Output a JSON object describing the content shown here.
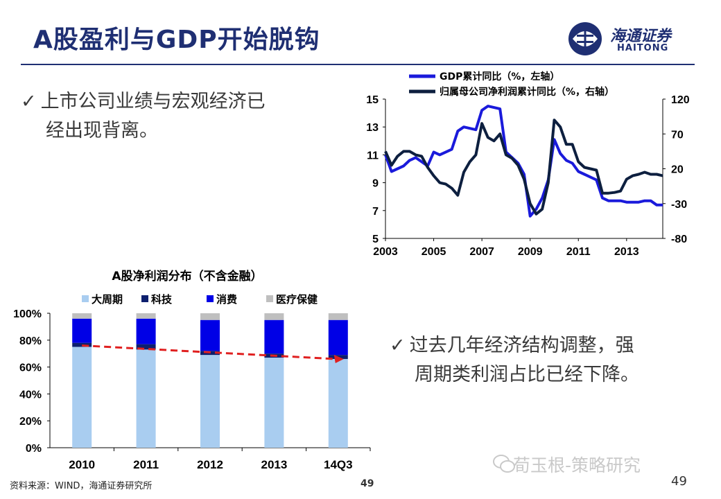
{
  "title": "A股盈利与GDP开始脱钩",
  "logo": {
    "cn": "海通证券",
    "en": "HAITONG"
  },
  "bullets": {
    "b1_line1": "上市公司业绩与宏观经济已",
    "b1_line2": "经出现背离。",
    "b2_line1": "过去几年经济结构调整，强",
    "b2_line2": "周期类利润占比已经下降。"
  },
  "source": "资料来源：WIND，海通证券研究所",
  "page_number_left": "49",
  "page_number_right": "49",
  "watermark": "荀玉根-策略研究",
  "colors": {
    "title": "#1f2f73",
    "gdp": "#1a1adb",
    "profit": "#0d1f3f",
    "cyc": "#a9cdf0",
    "tech": "#0d1f6e",
    "cons": "#0000e6",
    "health": "#bfbfbf",
    "trend": "#e02020"
  },
  "chart_data": [
    {
      "type": "line",
      "legend": [
        "GDP累计同比（%，左轴）",
        "归属母公司净利润累计同比（%，右轴）"
      ],
      "x_ticks": [
        "2003",
        "2005",
        "2007",
        "2009",
        "2011",
        "2013"
      ],
      "xlim": [
        2003,
        2014.5
      ],
      "y_left": {
        "ticks": [
          "15",
          "13",
          "11",
          "9",
          "7",
          "5"
        ],
        "lim": [
          5,
          15
        ]
      },
      "y_right": {
        "ticks": [
          "120",
          "70",
          "20",
          "-30",
          "-80"
        ],
        "lim": [
          -80,
          120
        ]
      },
      "series": [
        {
          "name": "GDP累计同比（%，左轴）",
          "axis": "left",
          "x": [
            2003.0,
            2003.25,
            2003.5,
            2003.75,
            2004.0,
            2004.25,
            2004.5,
            2004.75,
            2005.0,
            2005.25,
            2005.5,
            2005.75,
            2006.0,
            2006.25,
            2006.5,
            2006.75,
            2007.0,
            2007.25,
            2007.5,
            2007.75,
            2008.0,
            2008.25,
            2008.5,
            2008.75,
            2009.0,
            2009.25,
            2009.5,
            2009.75,
            2010.0,
            2010.25,
            2010.5,
            2010.75,
            2011.0,
            2011.25,
            2011.5,
            2011.75,
            2012.0,
            2012.25,
            2012.5,
            2012.75,
            2013.0,
            2013.25,
            2013.5,
            2013.75,
            2014.0,
            2014.25,
            2014.5
          ],
          "values": [
            11.0,
            9.8,
            10.0,
            10.2,
            10.6,
            10.8,
            10.5,
            10.2,
            11.2,
            11.0,
            11.2,
            11.4,
            12.7,
            13.0,
            12.9,
            12.8,
            14.2,
            14.5,
            14.4,
            14.3,
            11.2,
            10.8,
            10.4,
            9.6,
            6.6,
            7.1,
            7.9,
            9.2,
            12.1,
            11.1,
            10.6,
            10.4,
            9.8,
            9.6,
            9.4,
            9.2,
            7.9,
            7.7,
            7.7,
            7.7,
            7.6,
            7.6,
            7.6,
            7.7,
            7.7,
            7.4,
            7.4
          ]
        },
        {
          "name": "归属母公司净利润累计同比（%，右轴）",
          "axis": "right",
          "x": [
            2003.0,
            2003.25,
            2003.5,
            2003.75,
            2004.0,
            2004.25,
            2004.5,
            2004.75,
            2005.0,
            2005.25,
            2005.5,
            2005.75,
            2006.0,
            2006.25,
            2006.5,
            2006.75,
            2007.0,
            2007.25,
            2007.5,
            2007.75,
            2008.0,
            2008.25,
            2008.5,
            2008.75,
            2009.0,
            2009.25,
            2009.5,
            2009.75,
            2010.0,
            2010.25,
            2010.5,
            2010.75,
            2011.0,
            2011.25,
            2011.5,
            2011.75,
            2012.0,
            2012.25,
            2012.5,
            2012.75,
            2013.0,
            2013.25,
            2013.5,
            2013.75,
            2014.0,
            2014.25,
            2014.5
          ],
          "values": [
            45,
            25,
            38,
            45,
            45,
            40,
            38,
            22,
            10,
            0,
            -2,
            -8,
            -18,
            15,
            30,
            40,
            85,
            65,
            60,
            70,
            40,
            35,
            25,
            5,
            -30,
            -45,
            -38,
            0,
            90,
            80,
            55,
            55,
            30,
            22,
            20,
            18,
            -15,
            -15,
            -14,
            -12,
            5,
            10,
            12,
            15,
            12,
            12,
            10
          ]
        }
      ]
    },
    {
      "type": "bar",
      "stacked": true,
      "title": "A股净利润分布（不含金融）",
      "categories": [
        "2010",
        "2011",
        "2012",
        "2013",
        "14Q3"
      ],
      "y_ticks": [
        "100%",
        "80%",
        "60%",
        "40%",
        "20%",
        "0%"
      ],
      "ylim": [
        0,
        100
      ],
      "legend": [
        "大周期",
        "科技",
        "消费",
        "医疗保健"
      ],
      "series": [
        {
          "name": "大周期",
          "values": [
            75,
            73,
            69,
            67,
            66
          ]
        },
        {
          "name": "科技",
          "values": [
            3,
            4,
            3,
            3,
            3
          ]
        },
        {
          "name": "消费",
          "values": [
            18,
            19,
            23,
            25,
            26
          ]
        },
        {
          "name": "医疗保健",
          "values": [
            4,
            4,
            5,
            5,
            5
          ]
        }
      ],
      "trend_line": {
        "from_category": "2010",
        "to_category": "14Q3",
        "from_value": 76,
        "to_value": 66
      }
    }
  ]
}
